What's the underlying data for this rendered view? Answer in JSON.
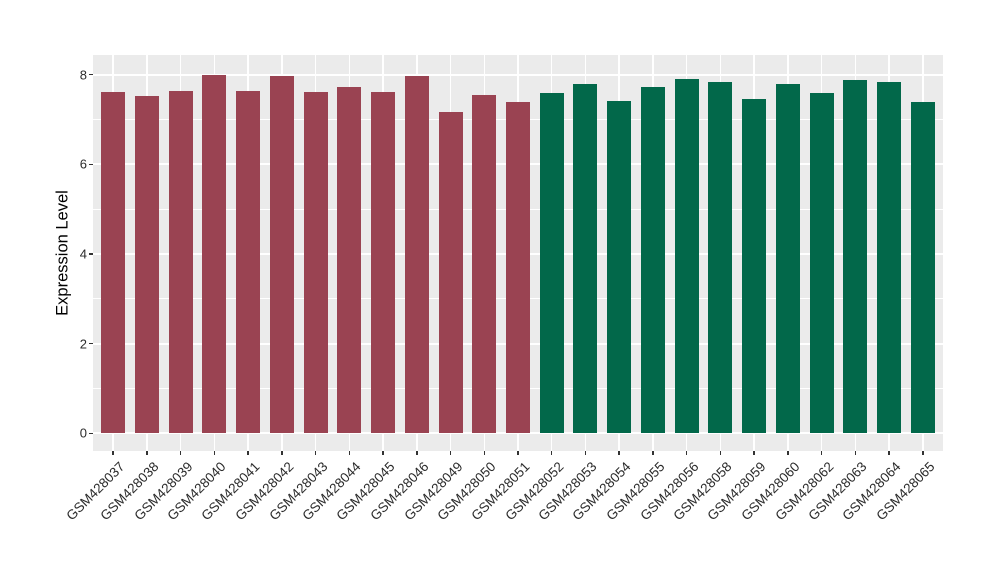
{
  "chart_data": {
    "type": "bar",
    "title": "",
    "xlabel": "",
    "ylabel": "Expression Level",
    "ylim": [
      -0.4,
      8.44
    ],
    "yticks": [
      0,
      2,
      4,
      6,
      8
    ],
    "yticks_minor": [
      1,
      3,
      5,
      7
    ],
    "grid": "on",
    "legend_position": "none",
    "categories": [
      "GSM428037",
      "GSM428038",
      "GSM428039",
      "GSM428040",
      "GSM428041",
      "GSM428042",
      "GSM428043",
      "GSM428044",
      "GSM428045",
      "GSM428046",
      "GSM428049",
      "GSM428050",
      "GSM428051",
      "GSM428052",
      "GSM428053",
      "GSM428054",
      "GSM428055",
      "GSM428056",
      "GSM428058",
      "GSM428059",
      "GSM428060",
      "GSM428062",
      "GSM428063",
      "GSM428064",
      "GSM428065"
    ],
    "values": [
      7.61,
      7.53,
      7.64,
      8.0,
      7.64,
      7.98,
      7.62,
      7.73,
      7.61,
      7.96,
      7.17,
      7.55,
      7.38,
      7.6,
      7.8,
      7.41,
      7.72,
      7.9,
      7.84,
      7.46,
      7.79,
      7.58,
      7.87,
      7.84,
      7.4
    ],
    "groups": [
      "group1",
      "group1",
      "group1",
      "group1",
      "group1",
      "group1",
      "group1",
      "group1",
      "group1",
      "group1",
      "group1",
      "group1",
      "group1",
      "group2",
      "group2",
      "group2",
      "group2",
      "group2",
      "group2",
      "group2",
      "group2",
      "group2",
      "group2",
      "group2",
      "group2"
    ],
    "group_colors": {
      "group1": "#9A4352",
      "group2": "#02684A"
    },
    "panel_background": "#EBEBEB",
    "grid_color": "#FFFFFF",
    "axis_text_color": "#2B2B2B",
    "page_background": "#FFFFFF"
  }
}
